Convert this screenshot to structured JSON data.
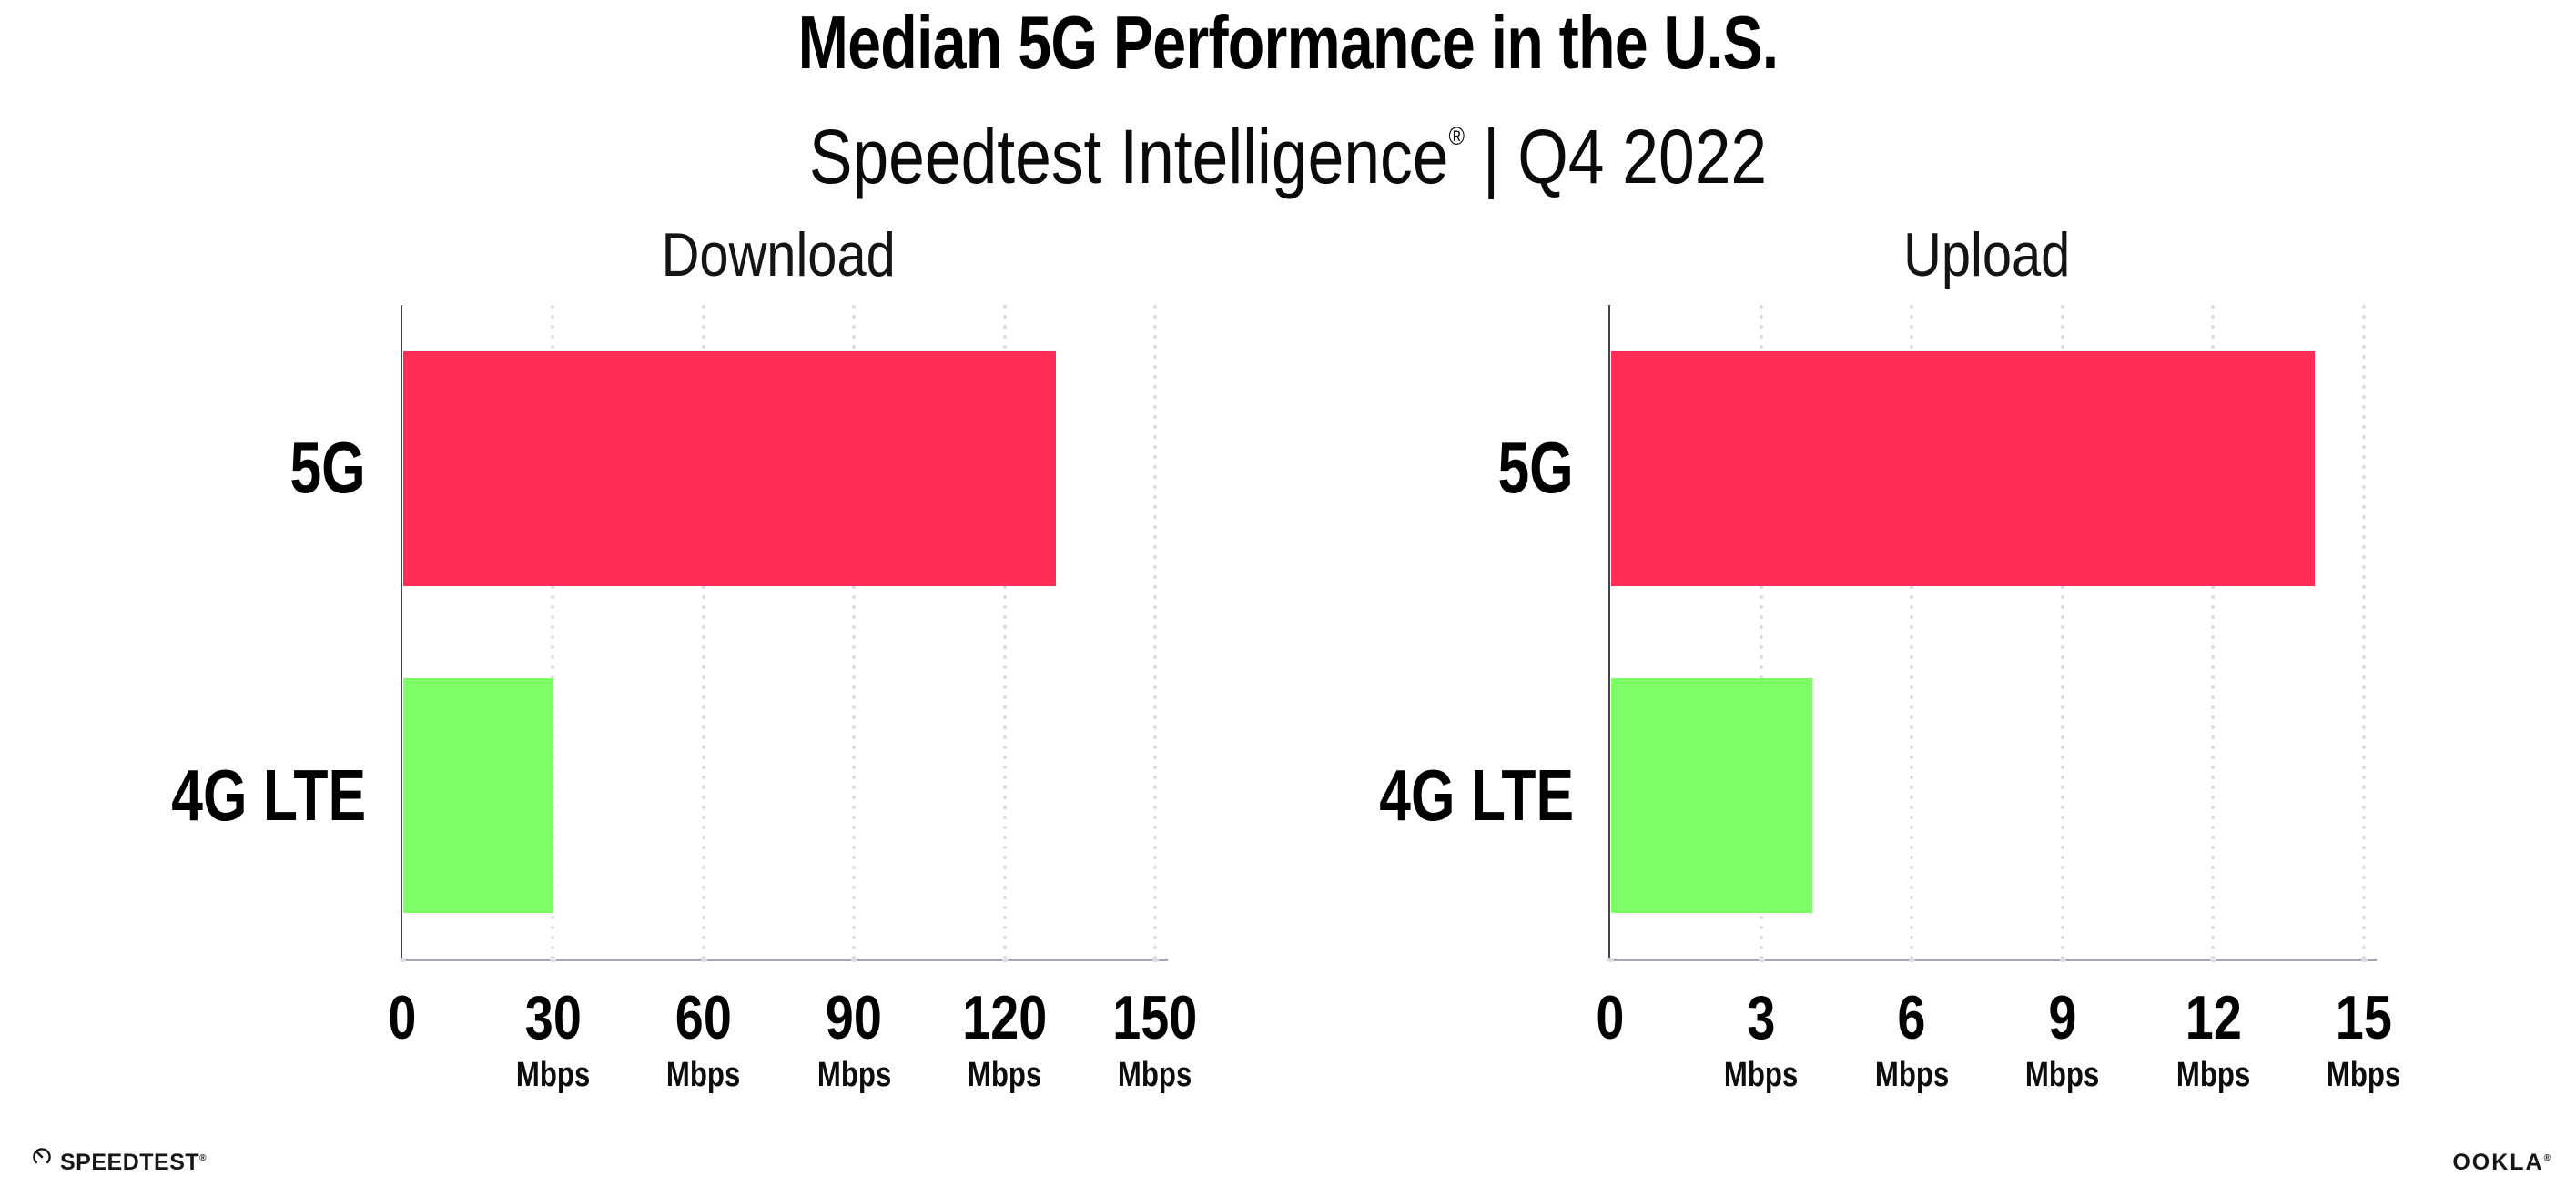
{
  "header": {
    "title": "Median 5G Performance in the U.S.",
    "subtitle_brand": "Speedtest Intelligence",
    "subtitle_mark": "®",
    "subtitle_period": " | Q4 2022"
  },
  "colors": {
    "bar_5g": "#FF2E56",
    "bar_4g_lte": "#7DFF66",
    "gridline": "#DBDBE5",
    "y_axis": "#46464C",
    "x_axis": "#A7A7AE",
    "text": "#000000"
  },
  "chart_data": [
    {
      "type": "bar",
      "orientation": "horizontal",
      "title": "Download",
      "categories": [
        "5G",
        "4G LTE"
      ],
      "values": [
        130,
        30
      ],
      "unit": "Mbps",
      "xlim": [
        0,
        150
      ],
      "xticks": [
        0,
        30,
        60,
        90,
        120,
        150
      ],
      "grid": "dotted-vertical",
      "legend": "none",
      "bar_colors": [
        "#FF2E56",
        "#7DFF66"
      ]
    },
    {
      "type": "bar",
      "orientation": "horizontal",
      "title": "Upload",
      "categories": [
        "5G",
        "4G LTE"
      ],
      "values": [
        14,
        4
      ],
      "unit": "Mbps",
      "xlim": [
        0,
        15
      ],
      "xticks": [
        0,
        3,
        6,
        9,
        12,
        15
      ],
      "grid": "dotted-vertical",
      "legend": "none",
      "bar_colors": [
        "#FF2E56",
        "#7DFF66"
      ]
    }
  ],
  "footer": {
    "speedtest": "SPEEDTEST",
    "speedtest_mark": "®",
    "ookla": "OOKLA",
    "ookla_mark": "®"
  }
}
